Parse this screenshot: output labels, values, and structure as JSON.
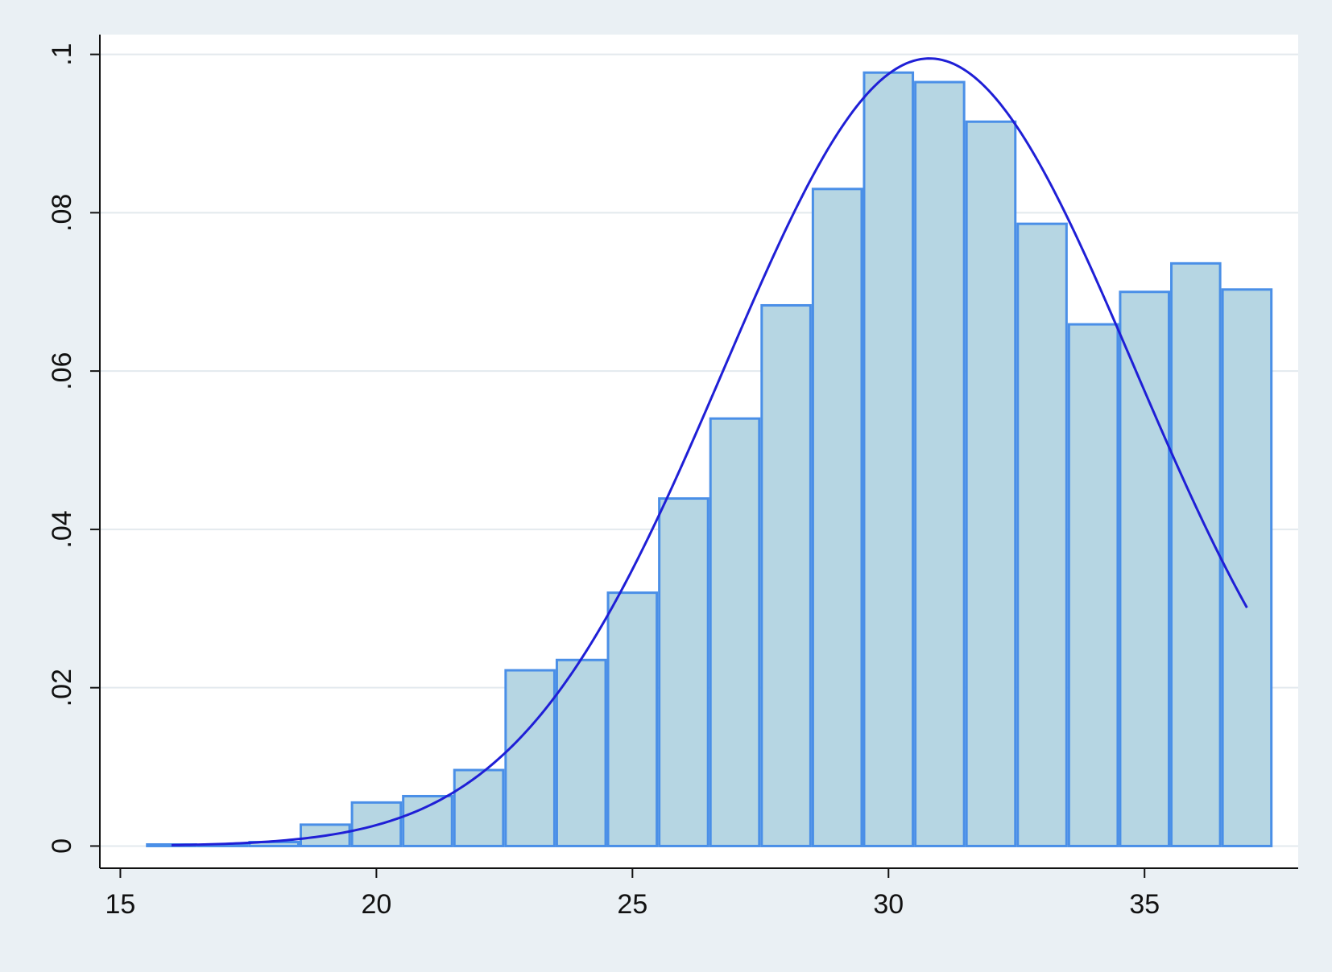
{
  "chart_data": {
    "type": "bar",
    "subtype": "histogram-with-density-curve",
    "title": "",
    "xlabel": "",
    "ylabel": "",
    "xlim": [
      14.6,
      38.0
    ],
    "ylim": [
      -0.0028,
      0.1025
    ],
    "x_ticks": [
      15,
      20,
      25,
      30,
      35
    ],
    "x_tick_labels": [
      "15",
      "20",
      "25",
      "30",
      "35"
    ],
    "y_ticks": [
      0,
      0.02,
      0.04,
      0.06,
      0.08,
      0.1
    ],
    "y_tick_labels": [
      "0",
      ".02",
      ".04",
      ".06",
      ".08",
      ".1"
    ],
    "grid": true,
    "legend": "none",
    "bin_width": 1,
    "bins": [
      {
        "start": 15.5,
        "end": 16.5,
        "value": 0.0002
      },
      {
        "start": 16.5,
        "end": 17.5,
        "value": 0.0001
      },
      {
        "start": 17.5,
        "end": 18.5,
        "value": 0.0005
      },
      {
        "start": 18.5,
        "end": 19.5,
        "value": 0.0027
      },
      {
        "start": 19.5,
        "end": 20.5,
        "value": 0.0055
      },
      {
        "start": 20.5,
        "end": 21.5,
        "value": 0.0063
      },
      {
        "start": 21.5,
        "end": 22.5,
        "value": 0.0096
      },
      {
        "start": 22.5,
        "end": 23.5,
        "value": 0.0222
      },
      {
        "start": 23.5,
        "end": 24.5,
        "value": 0.0235
      },
      {
        "start": 24.5,
        "end": 25.5,
        "value": 0.032
      },
      {
        "start": 25.5,
        "end": 26.5,
        "value": 0.0439
      },
      {
        "start": 26.5,
        "end": 27.5,
        "value": 0.054
      },
      {
        "start": 27.5,
        "end": 28.5,
        "value": 0.0683
      },
      {
        "start": 28.5,
        "end": 29.5,
        "value": 0.083
      },
      {
        "start": 29.5,
        "end": 30.5,
        "value": 0.0977
      },
      {
        "start": 30.5,
        "end": 31.5,
        "value": 0.0965
      },
      {
        "start": 31.5,
        "end": 32.5,
        "value": 0.0915
      },
      {
        "start": 32.5,
        "end": 33.5,
        "value": 0.0786
      },
      {
        "start": 33.5,
        "end": 34.5,
        "value": 0.0659
      },
      {
        "start": 34.5,
        "end": 35.5,
        "value": 0.07
      },
      {
        "start": 35.5,
        "end": 36.5,
        "value": 0.0736
      },
      {
        "start": 36.5,
        "end": 37.5,
        "value": 0.0703
      }
    ],
    "density_curve": {
      "type": "normal",
      "mean": 30.8,
      "sd": 4.01,
      "x_range": [
        16.0,
        37.0
      ]
    },
    "colors": {
      "background": "#eaf0f4",
      "plot_area": "#ffffff",
      "bar_fill": "#b6d6e3",
      "bar_stroke": "#4a8fe7",
      "curve": "#1f1fd6",
      "grid": "#e3e9ee",
      "axis": "#111111"
    }
  }
}
